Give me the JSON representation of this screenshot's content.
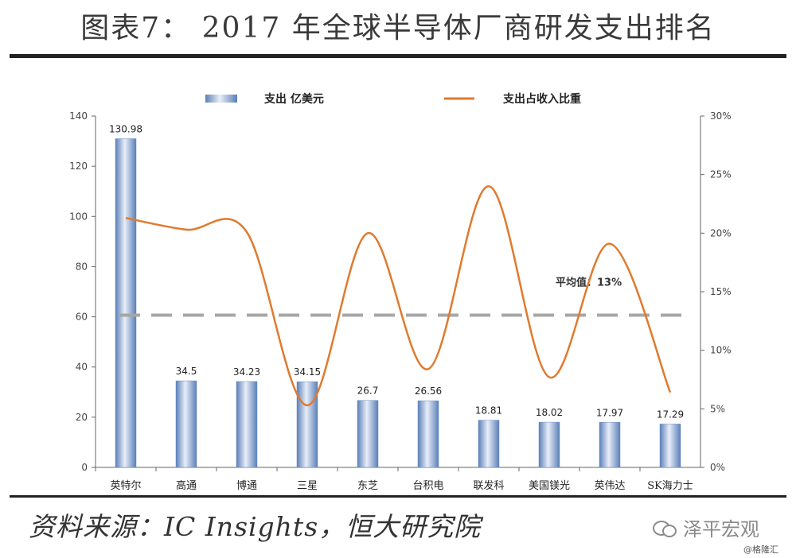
{
  "header": {
    "title": "图表7： 2017 年全球半导体厂商研发支出排名"
  },
  "footer": {
    "source": "资料来源：IC Insights，恒大研究院",
    "watermark": "泽平宏观",
    "credit": "@格隆汇"
  },
  "chart_data": {
    "type": "bar",
    "categories": [
      "英特尔",
      "高通",
      "博通",
      "三星",
      "东芝",
      "台积电",
      "联发科",
      "美国镁光",
      "英伟达",
      "SK海力士"
    ],
    "series": [
      {
        "name": "支出   亿美元",
        "type": "bar",
        "axis": "left",
        "color": "#8fa8cf",
        "values": [
          130.98,
          34.5,
          34.23,
          34.15,
          26.7,
          26.56,
          18.81,
          18.02,
          17.97,
          17.29
        ],
        "labels": [
          "130.98",
          "34.5",
          "34.23",
          "34.15",
          "26.7",
          "26.56",
          "18.81",
          "18.02",
          "17.97",
          "17.29"
        ]
      },
      {
        "name": "支出占收入比重",
        "type": "line",
        "axis": "right",
        "color": "#e07a2e",
        "values": [
          0.213,
          0.203,
          0.201,
          0.053,
          0.2,
          0.084,
          0.24,
          0.077,
          0.191,
          0.064
        ]
      }
    ],
    "left_axis": {
      "min": 0,
      "max": 140,
      "ticks": [
        "0",
        "20",
        "40",
        "60",
        "80",
        "100",
        "120",
        "140"
      ]
    },
    "right_axis": {
      "min": 0,
      "max": 0.3,
      "ticks": [
        "0%",
        "5%",
        "10%",
        "15%",
        "20%",
        "25%",
        "30%"
      ]
    },
    "average": {
      "value": 0.13,
      "label": "平均值：13%",
      "color": "#a6a6a6"
    },
    "legend": {
      "position": "top"
    },
    "grid": false
  }
}
